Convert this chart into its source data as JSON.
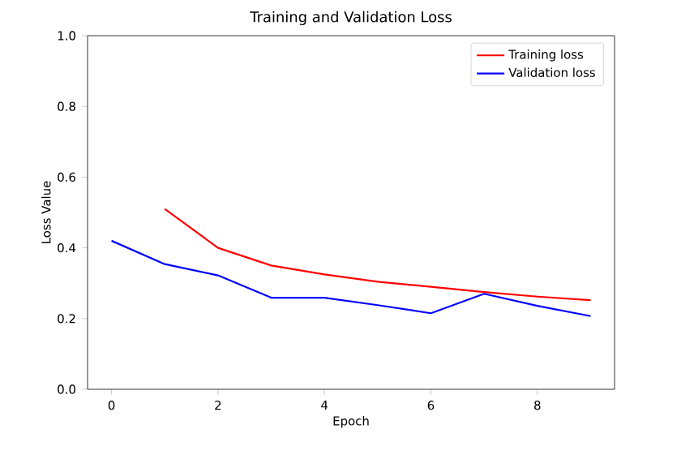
{
  "chart_data": {
    "type": "line",
    "title": "Training and Validation Loss",
    "xlabel": "Epoch",
    "ylabel": "Loss Value",
    "x": [
      0,
      1,
      2,
      3,
      4,
      5,
      6,
      7,
      8,
      9
    ],
    "series": [
      {
        "name": "Training loss",
        "color": "#ff0000",
        "values": [
          null,
          0.51,
          0.4,
          0.35,
          0.325,
          0.304,
          0.29,
          0.275,
          0.262,
          0.252
        ]
      },
      {
        "name": "Validation loss",
        "color": "#0000ff",
        "values": [
          0.42,
          0.354,
          0.322,
          0.259,
          0.259,
          0.238,
          0.215,
          0.27,
          0.236,
          0.207
        ]
      }
    ],
    "xlim": [
      -0.45,
      9.45
    ],
    "ylim": [
      0,
      1
    ],
    "xticks": [
      0,
      2,
      4,
      6,
      8
    ],
    "yticks": [
      {
        "value": 0,
        "label": "0.0"
      },
      {
        "value": 0.2,
        "label": "0.2"
      },
      {
        "value": 0.4,
        "label": "0.4"
      },
      {
        "value": 0.6,
        "label": "0.6"
      },
      {
        "value": 0.8,
        "label": "0.8"
      },
      {
        "value": 1,
        "label": "1.0"
      }
    ],
    "legend": "top right",
    "grid": false,
    "marker": "none",
    "line_style": "solid"
  }
}
